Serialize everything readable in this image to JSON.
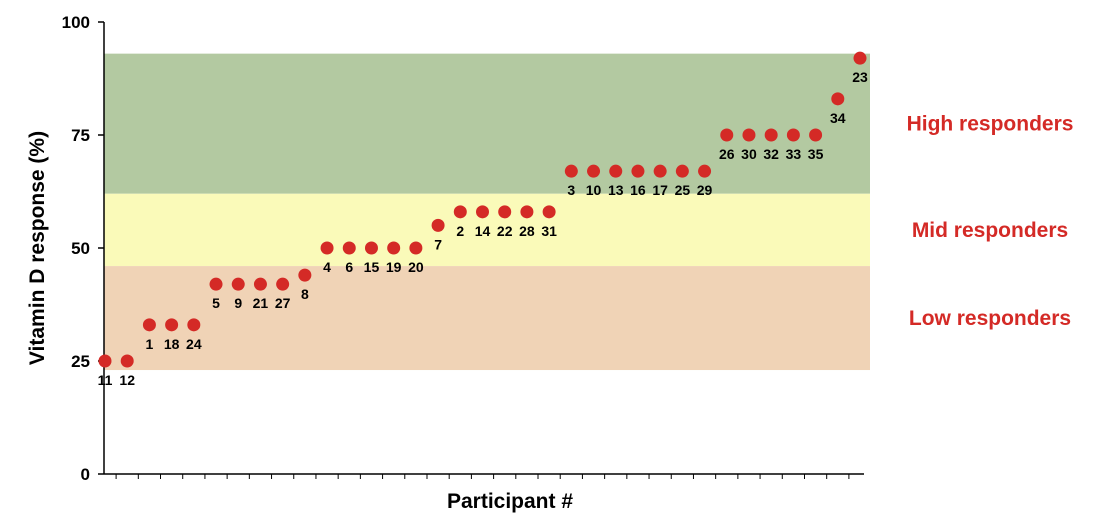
{
  "chart_data": {
    "type": "scatter",
    "xlabel": "Participant #",
    "ylabel": "Vitamin D response (%)",
    "ylim": [
      0,
      100
    ],
    "yticks": [
      0,
      25,
      50,
      75,
      100
    ],
    "grid": false,
    "marker_color": "#d42a26",
    "label_color": "#d42a26",
    "bands": [
      {
        "label": "High responders",
        "from": 62,
        "to": 93,
        "color": "#b3c9a1"
      },
      {
        "label": "Mid responders",
        "from": 46,
        "to": 62,
        "color": "#fafab9"
      },
      {
        "label": "Low responders",
        "from": 23,
        "to": 46,
        "color": "#f0d3b6"
      }
    ],
    "points": [
      {
        "id": "11",
        "y": 25
      },
      {
        "id": "12",
        "y": 25
      },
      {
        "id": "1",
        "y": 33
      },
      {
        "id": "18",
        "y": 33
      },
      {
        "id": "24",
        "y": 33
      },
      {
        "id": "5",
        "y": 42
      },
      {
        "id": "9",
        "y": 42
      },
      {
        "id": "21",
        "y": 42
      },
      {
        "id": "27",
        "y": 42
      },
      {
        "id": "8",
        "y": 44
      },
      {
        "id": "4",
        "y": 50
      },
      {
        "id": "6",
        "y": 50
      },
      {
        "id": "15",
        "y": 50
      },
      {
        "id": "19",
        "y": 50
      },
      {
        "id": "20",
        "y": 50
      },
      {
        "id": "7",
        "y": 55
      },
      {
        "id": "2",
        "y": 58
      },
      {
        "id": "14",
        "y": 58
      },
      {
        "id": "22",
        "y": 58
      },
      {
        "id": "28",
        "y": 58
      },
      {
        "id": "31",
        "y": 58
      },
      {
        "id": "3",
        "y": 67
      },
      {
        "id": "10",
        "y": 67
      },
      {
        "id": "13",
        "y": 67
      },
      {
        "id": "16",
        "y": 67
      },
      {
        "id": "17",
        "y": 67
      },
      {
        "id": "25",
        "y": 67
      },
      {
        "id": "29",
        "y": 67
      },
      {
        "id": "26",
        "y": 75
      },
      {
        "id": "30",
        "y": 75
      },
      {
        "id": "32",
        "y": 75
      },
      {
        "id": "33",
        "y": 75
      },
      {
        "id": "35",
        "y": 75
      },
      {
        "id": "34",
        "y": 83
      },
      {
        "id": "23",
        "y": 92
      }
    ]
  }
}
